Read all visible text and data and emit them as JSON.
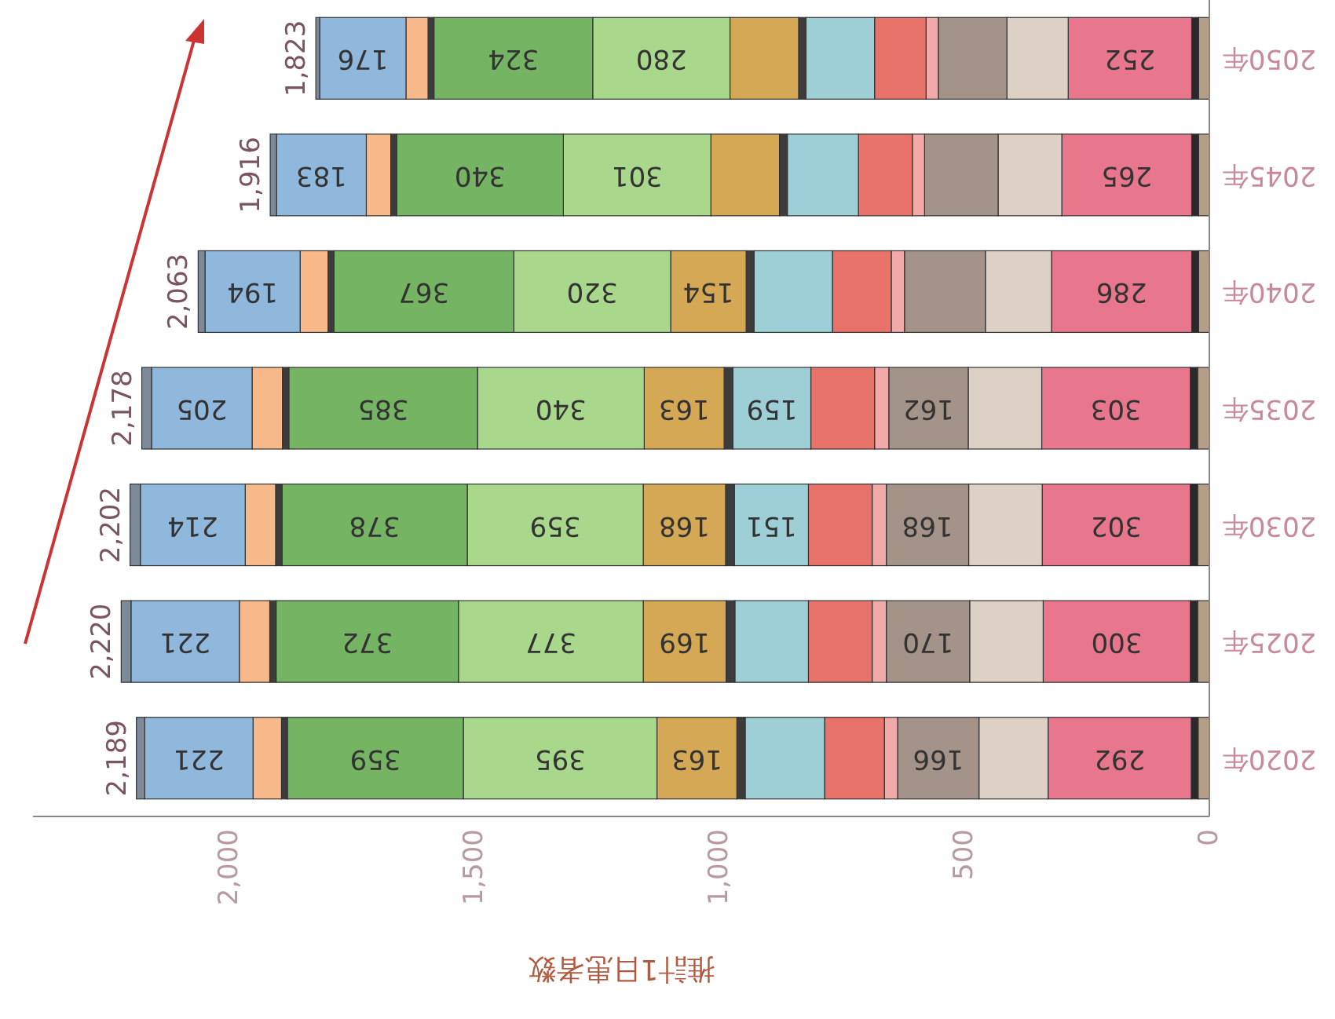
{
  "chart_data": {
    "type": "bar",
    "orientation": "horizontal",
    "stacked": true,
    "xlabel": "推計1日患者数",
    "categories": [
      "2050年",
      "2045年",
      "2040年",
      "2035年",
      "2030年",
      "2025年",
      "2020年"
    ],
    "xlim": [
      2400,
      0
    ],
    "xticks": [
      {
        "value": 2000,
        "label": "2,000"
      },
      {
        "value": 1500,
        "label": "1,500"
      },
      {
        "value": 1000,
        "label": "1,000"
      },
      500,
      0
    ],
    "totals": [
      "1,823",
      "1,916",
      "2,063",
      "2,178",
      "2,202",
      "2,220",
      "2,189"
    ],
    "series": [
      {
        "color": "#b49e88",
        "values": [
          22,
          22,
          22,
          24,
          24,
          24,
          23
        ]
      },
      {
        "color": "#2a2a2a",
        "values": [
          14,
          14,
          14,
          15,
          15,
          15,
          14
        ]
      },
      {
        "color": "#e8768c",
        "values": [
          252,
          265,
          286,
          303,
          302,
          300,
          292
        ],
        "value_labels": [
          "252",
          "265",
          "286",
          "303",
          "302",
          "300",
          "292"
        ]
      },
      {
        "color": "#ddd0c4",
        "values": [
          125,
          130,
          135,
          150,
          150,
          150,
          141
        ]
      },
      {
        "color": "#a39389",
        "values": [
          140,
          150,
          165,
          162,
          168,
          170,
          166
        ],
        "value_labels": [
          null,
          null,
          null,
          "162",
          "168",
          "170",
          "166"
        ]
      },
      {
        "color": "#f2aaa8",
        "values": [
          25,
          25,
          27,
          29,
          29,
          29,
          27
        ]
      },
      {
        "color": "#e8736a",
        "values": [
          105,
          110,
          120,
          130,
          130,
          130,
          122
        ]
      },
      {
        "color": "#9ecfd6",
        "values": [
          140,
          145,
          160,
          159,
          151,
          150,
          162
        ],
        "value_labels": [
          null,
          null,
          null,
          "159",
          "151",
          null,
          null
        ]
      },
      {
        "color": "#3c3c3c",
        "values": [
          15,
          16,
          16,
          18,
          18,
          18,
          17
        ]
      },
      {
        "color": "#d4a855",
        "values": [
          140,
          140,
          154,
          163,
          168,
          169,
          163
        ],
        "value_labels": [
          null,
          null,
          "154",
          "163",
          "168",
          "169",
          "163"
        ]
      },
      {
        "color": "#a9d88c",
        "values": [
          280,
          301,
          320,
          340,
          359,
          377,
          395
        ],
        "value_labels": [
          "280",
          "301",
          "320",
          "340",
          "359",
          "377",
          "395"
        ]
      },
      {
        "color": "#74b463",
        "values": [
          324,
          340,
          367,
          385,
          378,
          372,
          359
        ],
        "value_labels": [
          "324",
          "340",
          "367",
          "385",
          "378",
          "372",
          "359"
        ]
      },
      {
        "color": "#3c3c3c",
        "values": [
          12,
          12,
          12,
          13,
          13,
          13,
          12
        ]
      },
      {
        "color": "#f7b88a",
        "values": [
          45,
          50,
          57,
          62,
          62,
          62,
          58
        ]
      },
      {
        "color": "#8fb8dc",
        "values": [
          176,
          183,
          194,
          205,
          214,
          221,
          221
        ],
        "value_labels": [
          "176",
          "183",
          "194",
          "205",
          "214",
          "221",
          "221"
        ]
      },
      {
        "color": "#7d8a99",
        "values": [
          8,
          13,
          14,
          20,
          21,
          20,
          17
        ]
      }
    ]
  }
}
